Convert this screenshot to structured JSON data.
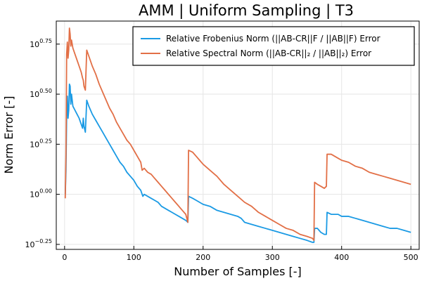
{
  "chart_data": {
    "type": "line",
    "title": "AMM | Uniform Sampling | T3",
    "xlabel": "Number of Samples [-]",
    "ylabel": "Norm Error [-]",
    "xlim": [
      -12,
      512
    ],
    "ylim": [
      -0.275,
      0.865
    ],
    "y_log_scale": true,
    "x_ticks": [
      0,
      100,
      200,
      300,
      400,
      500
    ],
    "y_ticks": [
      {
        "exponent": -0.25,
        "base": "10",
        "label": "−0.25"
      },
      {
        "exponent": 0.0,
        "base": "10",
        "label": "0.00"
      },
      {
        "exponent": 0.25,
        "base": "10",
        "label": "0.25"
      },
      {
        "exponent": 0.5,
        "base": "10",
        "label": "0.50"
      },
      {
        "exponent": 0.75,
        "base": "10",
        "label": "0.75"
      }
    ],
    "grid": true,
    "legend_position": "top-right",
    "series": [
      {
        "name": "Relative Frobenius Norm (||AB-CR||F / ||AB||F) Error",
        "color": "#1a9ae4",
        "log10_values": [
          [
            1,
            0.0
          ],
          [
            2,
            0.12
          ],
          [
            3,
            0.39
          ],
          [
            4,
            0.49
          ],
          [
            5,
            0.38
          ],
          [
            6,
            0.42
          ],
          [
            7,
            0.55
          ],
          [
            8,
            0.54
          ],
          [
            9,
            0.45
          ],
          [
            10,
            0.5
          ],
          [
            12,
            0.44
          ],
          [
            15,
            0.42
          ],
          [
            18,
            0.4
          ],
          [
            21,
            0.38
          ],
          [
            24,
            0.35
          ],
          [
            26,
            0.33
          ],
          [
            27,
            0.38
          ],
          [
            28,
            0.34
          ],
          [
            30,
            0.31
          ],
          [
            32,
            0.47
          ],
          [
            35,
            0.44
          ],
          [
            40,
            0.4
          ],
          [
            45,
            0.37
          ],
          [
            50,
            0.34
          ],
          [
            55,
            0.31
          ],
          [
            60,
            0.28
          ],
          [
            65,
            0.25
          ],
          [
            70,
            0.22
          ],
          [
            75,
            0.19
          ],
          [
            80,
            0.16
          ],
          [
            85,
            0.14
          ],
          [
            90,
            0.11
          ],
          [
            95,
            0.09
          ],
          [
            100,
            0.07
          ],
          [
            105,
            0.04
          ],
          [
            110,
            0.02
          ],
          [
            113,
            -0.01
          ],
          [
            115,
            0.0
          ],
          [
            120,
            -0.01
          ],
          [
            125,
            -0.02
          ],
          [
            130,
            -0.03
          ],
          [
            135,
            -0.04
          ],
          [
            140,
            -0.06
          ],
          [
            145,
            -0.07
          ],
          [
            150,
            -0.08
          ],
          [
            155,
            -0.09
          ],
          [
            160,
            -0.1
          ],
          [
            165,
            -0.11
          ],
          [
            170,
            -0.12
          ],
          [
            175,
            -0.13
          ],
          [
            178,
            -0.14
          ],
          [
            179,
            -0.01
          ],
          [
            185,
            -0.02
          ],
          [
            190,
            -0.03
          ],
          [
            195,
            -0.04
          ],
          [
            200,
            -0.05
          ],
          [
            210,
            -0.06
          ],
          [
            220,
            -0.08
          ],
          [
            230,
            -0.09
          ],
          [
            240,
            -0.1
          ],
          [
            250,
            -0.11
          ],
          [
            255,
            -0.12
          ],
          [
            260,
            -0.14
          ],
          [
            270,
            -0.15
          ],
          [
            280,
            -0.16
          ],
          [
            290,
            -0.17
          ],
          [
            300,
            -0.18
          ],
          [
            310,
            -0.19
          ],
          [
            320,
            -0.2
          ],
          [
            330,
            -0.21
          ],
          [
            340,
            -0.22
          ],
          [
            350,
            -0.23
          ],
          [
            358,
            -0.24
          ],
          [
            360,
            -0.24
          ],
          [
            361,
            -0.17
          ],
          [
            365,
            -0.17
          ],
          [
            370,
            -0.19
          ],
          [
            375,
            -0.2
          ],
          [
            378,
            -0.2
          ],
          [
            379,
            -0.09
          ],
          [
            385,
            -0.1
          ],
          [
            390,
            -0.1
          ],
          [
            395,
            -0.1
          ],
          [
            400,
            -0.11
          ],
          [
            410,
            -0.11
          ],
          [
            420,
            -0.12
          ],
          [
            430,
            -0.13
          ],
          [
            440,
            -0.14
          ],
          [
            450,
            -0.15
          ],
          [
            460,
            -0.16
          ],
          [
            470,
            -0.17
          ],
          [
            480,
            -0.17
          ],
          [
            490,
            -0.18
          ],
          [
            500,
            -0.19
          ]
        ]
      },
      {
        "name": "Relative Spectral Norm (||AB-CR||₂ / ||AB||₂) Error",
        "color": "#e26f46",
        "log10_values": [
          [
            1,
            -0.02
          ],
          [
            2,
            0.2
          ],
          [
            3,
            0.7
          ],
          [
            4,
            0.76
          ],
          [
            5,
            0.68
          ],
          [
            6,
            0.72
          ],
          [
            7,
            0.83
          ],
          [
            8,
            0.8
          ],
          [
            9,
            0.74
          ],
          [
            10,
            0.77
          ],
          [
            12,
            0.73
          ],
          [
            15,
            0.7
          ],
          [
            18,
            0.67
          ],
          [
            21,
            0.64
          ],
          [
            24,
            0.61
          ],
          [
            26,
            0.58
          ],
          [
            27,
            0.57
          ],
          [
            28,
            0.54
          ],
          [
            30,
            0.52
          ],
          [
            32,
            0.72
          ],
          [
            35,
            0.69
          ],
          [
            40,
            0.64
          ],
          [
            45,
            0.6
          ],
          [
            50,
            0.55
          ],
          [
            55,
            0.51
          ],
          [
            60,
            0.47
          ],
          [
            65,
            0.43
          ],
          [
            70,
            0.4
          ],
          [
            75,
            0.36
          ],
          [
            80,
            0.33
          ],
          [
            85,
            0.3
          ],
          [
            90,
            0.27
          ],
          [
            95,
            0.25
          ],
          [
            100,
            0.22
          ],
          [
            105,
            0.19
          ],
          [
            110,
            0.16
          ],
          [
            112,
            0.12
          ],
          [
            115,
            0.13
          ],
          [
            120,
            0.11
          ],
          [
            125,
            0.1
          ],
          [
            130,
            0.08
          ],
          [
            135,
            0.06
          ],
          [
            140,
            0.04
          ],
          [
            145,
            0.02
          ],
          [
            150,
            0.0
          ],
          [
            155,
            -0.02
          ],
          [
            160,
            -0.04
          ],
          [
            165,
            -0.06
          ],
          [
            170,
            -0.08
          ],
          [
            175,
            -0.1
          ],
          [
            178,
            -0.14
          ],
          [
            179,
            0.22
          ],
          [
            185,
            0.21
          ],
          [
            190,
            0.19
          ],
          [
            195,
            0.17
          ],
          [
            200,
            0.15
          ],
          [
            210,
            0.12
          ],
          [
            220,
            0.09
          ],
          [
            230,
            0.05
          ],
          [
            240,
            0.02
          ],
          [
            250,
            -0.01
          ],
          [
            260,
            -0.04
          ],
          [
            270,
            -0.06
          ],
          [
            280,
            -0.09
          ],
          [
            290,
            -0.11
          ],
          [
            300,
            -0.13
          ],
          [
            310,
            -0.15
          ],
          [
            320,
            -0.17
          ],
          [
            330,
            -0.18
          ],
          [
            340,
            -0.2
          ],
          [
            350,
            -0.21
          ],
          [
            358,
            -0.22
          ],
          [
            360,
            -0.23
          ],
          [
            361,
            0.06
          ],
          [
            365,
            0.05
          ],
          [
            370,
            0.04
          ],
          [
            375,
            0.03
          ],
          [
            378,
            0.04
          ],
          [
            379,
            0.2
          ],
          [
            385,
            0.2
          ],
          [
            390,
            0.19
          ],
          [
            395,
            0.18
          ],
          [
            400,
            0.17
          ],
          [
            410,
            0.16
          ],
          [
            420,
            0.14
          ],
          [
            430,
            0.13
          ],
          [
            440,
            0.11
          ],
          [
            450,
            0.1
          ],
          [
            460,
            0.09
          ],
          [
            470,
            0.08
          ],
          [
            480,
            0.07
          ],
          [
            490,
            0.06
          ],
          [
            500,
            0.05
          ]
        ]
      }
    ]
  }
}
